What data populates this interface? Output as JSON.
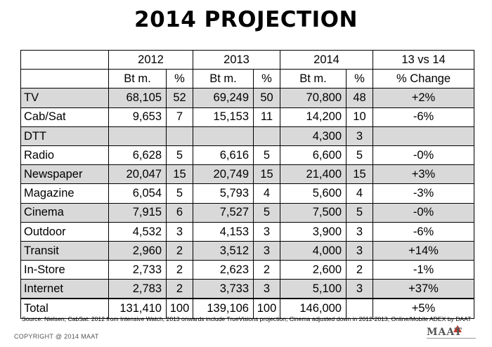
{
  "title": "2014 PROJECTION",
  "header": {
    "years": [
      "2012",
      "2013",
      "2014",
      "13 vs 14"
    ],
    "units": {
      "bt": "Bt m.",
      "pct": "%",
      "change": "% Change"
    }
  },
  "rows": [
    {
      "name": "TV",
      "v2012": "68,105",
      "p2012": "52",
      "v2013": "69,249",
      "p2013": "50",
      "v2014": "70,800",
      "p2014": "48",
      "change": "+2%"
    },
    {
      "name": "Cab/Sat",
      "v2012": "9,653",
      "p2012": "7",
      "v2013": "15,153",
      "p2013": "11",
      "v2014": "14,200",
      "p2014": "10",
      "change": "-6%"
    },
    {
      "name": "DTT",
      "v2012": "",
      "p2012": "",
      "v2013": "",
      "p2013": "",
      "v2014": "4,300",
      "p2014": "3",
      "change": ""
    },
    {
      "name": "Radio",
      "v2012": "6,628",
      "p2012": "5",
      "v2013": "6,616",
      "p2013": "5",
      "v2014": "6,600",
      "p2014": "5",
      "change": "-0%"
    },
    {
      "name": "Newspaper",
      "v2012": "20,047",
      "p2012": "15",
      "v2013": "20,749",
      "p2013": "15",
      "v2014": "21,400",
      "p2014": "15",
      "change": "+3%"
    },
    {
      "name": "Magazine",
      "v2012": "6,054",
      "p2012": "5",
      "v2013": "5,793",
      "p2013": "4",
      "v2014": "5,600",
      "p2014": "4",
      "change": "-3%"
    },
    {
      "name": "Cinema",
      "v2012": "7,915",
      "p2012": "6",
      "v2013": "7,527",
      "p2013": "5",
      "v2014": "7,500",
      "p2014": "5",
      "change": "-0%"
    },
    {
      "name": "Outdoor",
      "v2012": "4,532",
      "p2012": "3",
      "v2013": "4,153",
      "p2013": "3",
      "v2014": "3,900",
      "p2014": "3",
      "change": "-6%"
    },
    {
      "name": "Transit",
      "v2012": "2,960",
      "p2012": "2",
      "v2013": "3,512",
      "p2013": "3",
      "v2014": "4,000",
      "p2014": "3",
      "change": "+14%"
    },
    {
      "name": "In-Store",
      "v2012": "2,733",
      "p2012": "2",
      "v2013": "2,623",
      "p2013": "2",
      "v2014": "2,600",
      "p2014": "2",
      "change": "-1%"
    },
    {
      "name": "Internet",
      "v2012": "2,783",
      "p2012": "2",
      "v2013": "3,733",
      "p2013": "3",
      "v2014": "5,100",
      "p2014": "3",
      "change": "+37%"
    }
  ],
  "total": {
    "name": "Total",
    "v2012": "131,410",
    "p2012": "100",
    "v2013": "139,106",
    "p2013": "100",
    "v2014": "146,000",
    "p2014": "",
    "change": "+5%"
  },
  "source": "Source: Nielsen; CabSat: 2012 from Intensive Watch, 2013 onwards include TrueVisions projection; Cinema adjusted down in 2012-2013, Online/Mobile ADEX by DAAT",
  "copyright": "COPYRIGHT @ 2014 MAAT",
  "logo": "MAAT",
  "colors": {
    "shade": "#d9d9d9",
    "logo_accent": "#c0392b"
  }
}
